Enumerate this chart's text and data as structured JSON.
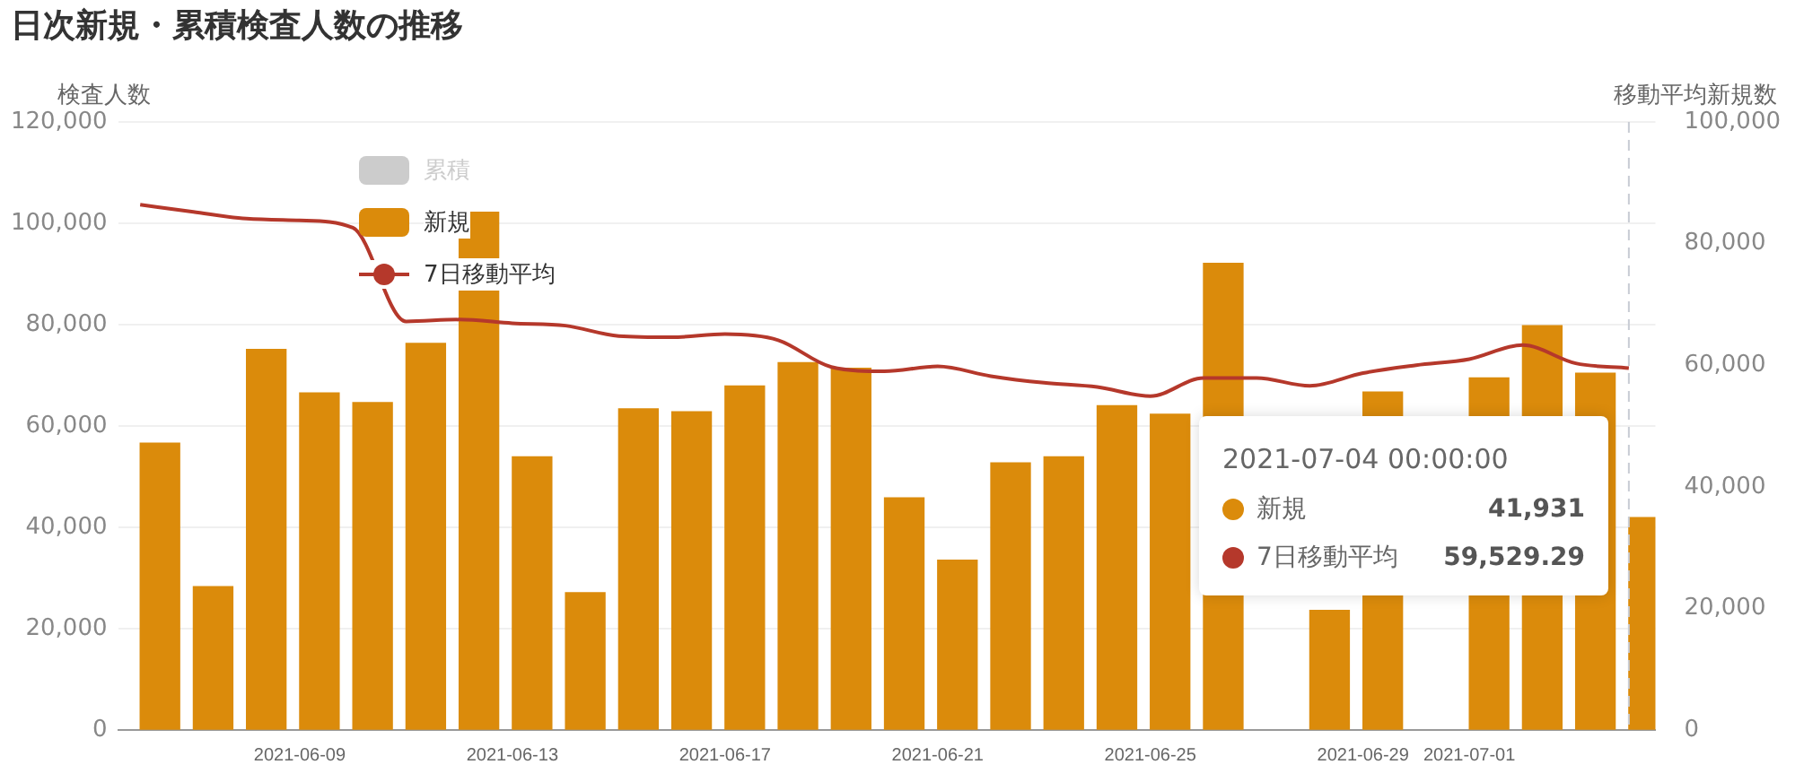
{
  "chart_data": {
    "type": "bar",
    "title": "日次新規・累積検査人数の推移",
    "ylabel": "検査人数",
    "y2label": "移動平均新規数",
    "x": [
      "2021-06-06",
      "2021-06-07",
      "2021-06-08",
      "2021-06-09",
      "2021-06-10",
      "2021-06-11",
      "2021-06-12",
      "2021-06-13",
      "2021-06-14",
      "2021-06-15",
      "2021-06-16",
      "2021-06-17",
      "2021-06-18",
      "2021-06-19",
      "2021-06-20",
      "2021-06-21",
      "2021-06-22",
      "2021-06-23",
      "2021-06-24",
      "2021-06-25",
      "2021-06-26",
      "2021-06-27",
      "2021-06-28",
      "2021-06-29",
      "2021-06-30",
      "2021-07-01",
      "2021-07-02",
      "2021-07-03",
      "2021-07-04"
    ],
    "series": [
      {
        "name": "累積",
        "color": "#cccccc",
        "values": [
          null,
          null,
          null,
          null,
          null,
          null,
          null,
          null,
          null,
          null,
          null,
          null,
          null,
          null,
          null,
          null,
          null,
          null,
          null,
          null,
          null,
          null,
          null,
          null,
          null,
          null,
          null,
          null,
          null
        ]
      },
      {
        "name": "新規",
        "color": "#db8b0b",
        "values": [
          56600,
          28300,
          75100,
          66500,
          64600,
          76300,
          102200,
          53900,
          27100,
          63400,
          62800,
          67900,
          72500,
          71400,
          45800,
          33500,
          52700,
          53900,
          64000,
          62300,
          92100,
          null,
          23600,
          66700,
          null,
          69500,
          79800,
          70400,
          41931
        ]
      },
      {
        "name": "7日移動平均",
        "color": "#b5382b",
        "type": "line",
        "axis": "y2",
        "values": [
          86400,
          85200,
          84100,
          83800,
          82600,
          67200,
          67500,
          66900,
          66500,
          64800,
          64600,
          65100,
          64100,
          59700,
          59000,
          59800,
          58200,
          57100,
          56400,
          54900,
          57900,
          57900,
          56600,
          58700,
          60000,
          61000,
          63300,
          60300,
          59529.29
        ]
      }
    ],
    "xlim": [
      "2021-06-05T14:00",
      "2021-07-04T12:00"
    ],
    "xticks": [
      "2021-06-09",
      "2021-06-13",
      "2021-06-17",
      "2021-06-21",
      "2021-06-25",
      "2021-06-29",
      "2021-07-01"
    ],
    "ylim": [
      0,
      120000
    ],
    "yticks": [
      0,
      {
        "value": 20000,
        "label": "20,000"
      },
      {
        "value": 40000,
        "label": "40,000"
      },
      {
        "value": 60000,
        "label": "60,000"
      },
      {
        "value": 80000,
        "label": "80,000"
      },
      {
        "value": 100000,
        "label": "100,000"
      },
      {
        "value": 120000,
        "label": "120,000"
      }
    ],
    "y2lim": [
      0,
      100000
    ],
    "y2ticks": [
      0,
      {
        "value": 20000,
        "label": "20,000"
      },
      {
        "value": 40000,
        "label": "40,000"
      },
      {
        "value": 60000,
        "label": "60,000"
      },
      {
        "value": 80000,
        "label": "80,000"
      },
      {
        "value": 100000,
        "label": "100,000"
      }
    ],
    "grid": "y",
    "legend": "top left",
    "marker": "none",
    "ref_lines": [
      {
        "axis": "x",
        "value": "2021-07-04",
        "color": "#c8ccd4",
        "line_style": "dashed"
      }
    ],
    "annotations": [
      "2021-07-04 00:00:00",
      "新規",
      "41,931",
      "7日移動平均",
      "59,529.29"
    ]
  }
}
